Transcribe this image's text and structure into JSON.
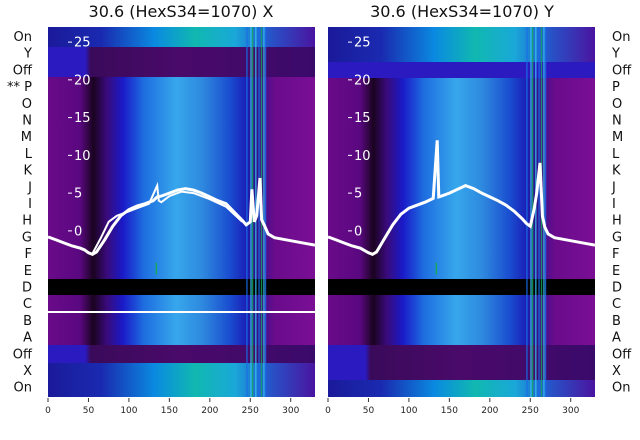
{
  "chart_data": [
    {
      "type": "heatmap",
      "title": "30.6 (HexS34=1070) X",
      "xlim": [
        0,
        330
      ],
      "ylim": [
        -22,
        27
      ],
      "x_ticks": [
        0,
        50,
        100,
        150,
        200,
        250,
        300
      ],
      "y_ticks": [
        0,
        5,
        10,
        15,
        20,
        25
      ],
      "left_row_labels": [
        "On",
        "Y",
        "Off",
        "** P",
        "O",
        "N",
        "M",
        "L",
        "K",
        "J",
        "I",
        "H",
        "G",
        "F",
        "E",
        "D",
        "C",
        "B",
        "A",
        "Off",
        "X",
        "On"
      ],
      "highlight_row": "C",
      "series": [
        {
          "points": [
            [
              0,
              -0.8
            ],
            [
              10,
              -1.2
            ],
            [
              20,
              -1.6
            ],
            [
              30,
              -2.0
            ],
            [
              40,
              -2.3
            ],
            [
              45,
              -2.5
            ],
            [
              50,
              -2.9
            ],
            [
              55,
              -3.1
            ],
            [
              60,
              -2.8
            ],
            [
              70,
              -1.2
            ],
            [
              80,
              0.6
            ],
            [
              90,
              2.0
            ],
            [
              100,
              2.8
            ],
            [
              110,
              3.3
            ],
            [
              120,
              3.6
            ],
            [
              130,
              4.0
            ],
            [
              135,
              4.5
            ],
            [
              140,
              4.6
            ],
            [
              150,
              5.0
            ],
            [
              160,
              5.4
            ],
            [
              170,
              5.6
            ],
            [
              180,
              5.4
            ],
            [
              190,
              5.0
            ],
            [
              200,
              4.5
            ],
            [
              210,
              4.0
            ],
            [
              220,
              3.6
            ],
            [
              230,
              2.5
            ],
            [
              240,
              1.4
            ],
            [
              245,
              0.8
            ],
            [
              250,
              1.2
            ],
            [
              252,
              5.5
            ],
            [
              255,
              1.2
            ],
            [
              258,
              2.0
            ],
            [
              262,
              7.0
            ],
            [
              264,
              1.5
            ],
            [
              268,
              0.6
            ],
            [
              272,
              -0.4
            ],
            [
              280,
              -0.9
            ],
            [
              290,
              -1.1
            ],
            [
              300,
              -1.3
            ],
            [
              310,
              -1.5
            ],
            [
              320,
              -1.7
            ],
            [
              330,
              -1.9
            ]
          ]
        },
        {
          "points": [
            [
              55,
              -3.0
            ],
            [
              65,
              -1.0
            ],
            [
              75,
              1.2
            ],
            [
              85,
              2.0
            ],
            [
              95,
              2.4
            ],
            [
              110,
              3.0
            ],
            [
              125,
              3.6
            ],
            [
              135,
              6.0
            ],
            [
              137,
              4.0
            ],
            [
              140,
              3.8
            ],
            [
              150,
              4.6
            ],
            [
              165,
              5.2
            ],
            [
              180,
              5.0
            ],
            [
              200,
              4.2
            ],
            [
              220,
              3.2
            ],
            [
              240,
              1.2
            ]
          ]
        }
      ]
    },
    {
      "type": "heatmap",
      "title": "30.6 (HexS34=1070) Y",
      "xlim": [
        0,
        330
      ],
      "ylim": [
        -22,
        27
      ],
      "x_ticks": [
        0,
        50,
        100,
        150,
        200,
        250,
        300
      ],
      "y_ticks": [
        0,
        5,
        10,
        15,
        20,
        25
      ],
      "right_row_labels": [
        "On",
        "Y",
        "Off",
        "P",
        "O",
        "N",
        "M",
        "L",
        "K",
        "J",
        "I",
        "H",
        "G",
        "F",
        "E",
        "D",
        "C",
        "B",
        "A",
        "Off",
        "X",
        "On"
      ],
      "series": [
        {
          "points": [
            [
              0,
              -0.8
            ],
            [
              10,
              -1.2
            ],
            [
              20,
              -1.6
            ],
            [
              30,
              -2.0
            ],
            [
              40,
              -2.3
            ],
            [
              50,
              -2.9
            ],
            [
              55,
              -3.1
            ],
            [
              60,
              -2.8
            ],
            [
              70,
              -1.0
            ],
            [
              80,
              0.8
            ],
            [
              90,
              2.2
            ],
            [
              100,
              3.0
            ],
            [
              110,
              3.4
            ],
            [
              120,
              3.8
            ],
            [
              130,
              4.3
            ],
            [
              135,
              12.0
            ],
            [
              137,
              4.5
            ],
            [
              140,
              4.6
            ],
            [
              150,
              5.0
            ],
            [
              160,
              5.5
            ],
            [
              170,
              6.0
            ],
            [
              180,
              5.6
            ],
            [
              190,
              5.0
            ],
            [
              200,
              4.5
            ],
            [
              210,
              4.0
            ],
            [
              220,
              3.4
            ],
            [
              230,
              2.6
            ],
            [
              240,
              1.6
            ],
            [
              245,
              1.0
            ],
            [
              250,
              0.6
            ],
            [
              255,
              3.0
            ],
            [
              258,
              5.0
            ],
            [
              262,
              9.0
            ],
            [
              265,
              2.0
            ],
            [
              268,
              0.5
            ],
            [
              272,
              -0.4
            ],
            [
              280,
              -0.9
            ],
            [
              290,
              -1.1
            ],
            [
              300,
              -1.3
            ],
            [
              310,
              -1.5
            ],
            [
              320,
              -1.7
            ],
            [
              330,
              -1.9
            ]
          ]
        }
      ]
    }
  ]
}
